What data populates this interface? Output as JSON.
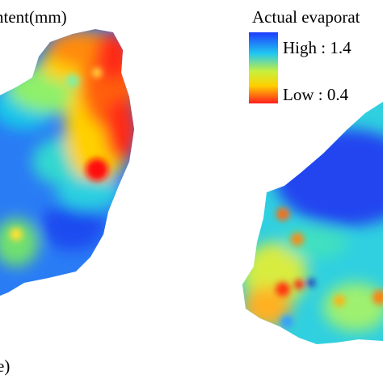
{
  "left_panel": {
    "title": "ntent(mm)",
    "label": "e)"
  },
  "right_panel": {
    "title": "Actual evaporat",
    "legend": {
      "high": "High : 1.4",
      "low": "Low : 0.4"
    }
  }
}
